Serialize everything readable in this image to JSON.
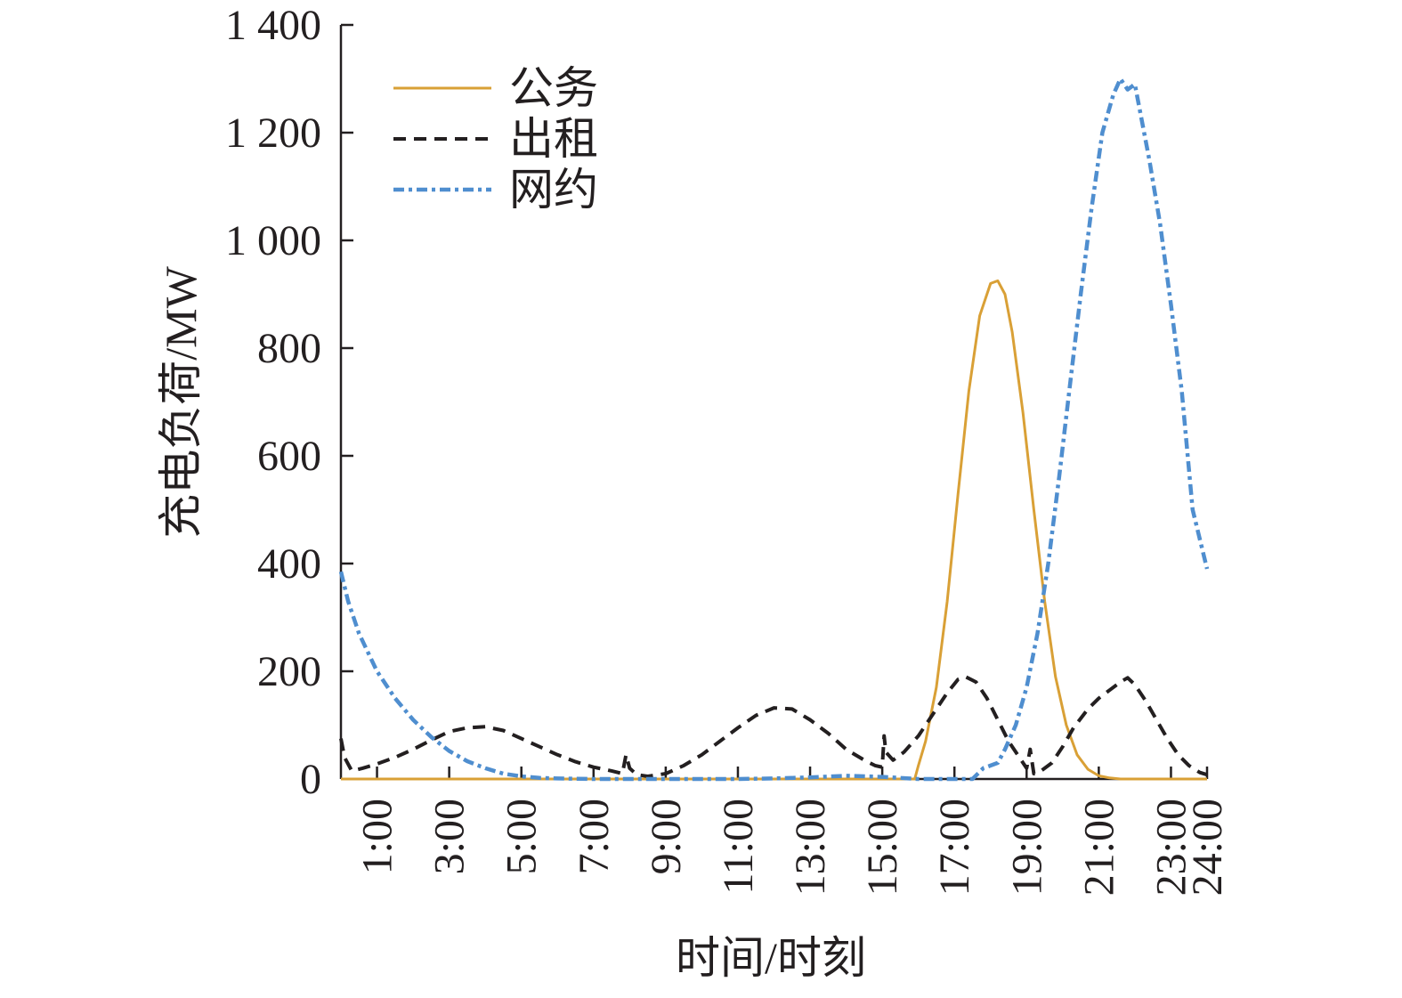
{
  "chart_data": {
    "type": "line",
    "title": "",
    "xlabel": "时间/时刻",
    "ylabel": "充电负荷/MW",
    "xlim": [
      0,
      24
    ],
    "ylim": [
      0,
      1400
    ],
    "x_ticks": [
      1,
      3,
      5,
      7,
      9,
      11,
      13,
      15,
      17,
      19,
      21,
      23,
      24
    ],
    "x_tick_labels": [
      "1:00",
      "3:00",
      "5:00",
      "7:00",
      "9:00",
      "11:00",
      "13:00",
      "15:00",
      "17:00",
      "19:00",
      "21:00",
      "23:00",
      "24:00"
    ],
    "y_ticks": [
      0,
      200,
      400,
      600,
      800,
      1000,
      1200,
      1400
    ],
    "y_tick_labels": [
      "0",
      "200",
      "400",
      "600",
      "800",
      "1 000",
      "1 200",
      "1 400"
    ],
    "grid": false,
    "legend_position": "top-left",
    "series": [
      {
        "name": "公务",
        "color": "#d9a036",
        "style": "solid",
        "x": [
          0,
          15.9,
          16.0,
          16.2,
          16.5,
          16.8,
          17.1,
          17.4,
          17.7,
          18.0,
          18.2,
          18.4,
          18.6,
          18.9,
          19.2,
          19.5,
          19.8,
          20.1,
          20.4,
          20.7,
          21.0,
          21.3,
          21.6,
          22.0,
          24.0
        ],
        "y": [
          0,
          0,
          25,
          70,
          170,
          330,
          530,
          720,
          860,
          920,
          925,
          900,
          830,
          680,
          500,
          330,
          190,
          100,
          45,
          18,
          6,
          2,
          0,
          0,
          0
        ]
      },
      {
        "name": "出租",
        "color": "#231f20",
        "style": "dashed",
        "x": [
          0,
          0.1,
          0.3,
          0.6,
          1.0,
          1.5,
          2.0,
          2.5,
          3.0,
          3.5,
          4.0,
          4.5,
          5.0,
          5.5,
          6.0,
          6.5,
          7.0,
          7.5,
          7.8,
          7.9,
          8.0,
          8.2,
          8.5,
          9.0,
          9.5,
          10.0,
          10.5,
          11.0,
          11.5,
          12.0,
          12.5,
          13.0,
          13.5,
          14.0,
          14.5,
          14.8,
          15.0,
          15.05,
          15.1,
          15.3,
          15.6,
          16.0,
          16.4,
          16.8,
          17.1,
          17.3,
          17.6,
          17.9,
          18.2,
          18.5,
          18.8,
          19.0,
          19.1,
          19.2,
          19.4,
          19.7,
          20.0,
          20.3,
          20.7,
          21.0,
          21.3,
          21.6,
          21.8,
          22.0,
          22.3,
          22.6,
          22.9,
          23.2,
          23.5,
          23.8,
          24.0
        ],
        "y": [
          75,
          40,
          15,
          20,
          28,
          40,
          55,
          72,
          88,
          95,
          97,
          90,
          75,
          60,
          45,
          32,
          22,
          15,
          10,
          45,
          20,
          8,
          5,
          10,
          25,
          45,
          70,
          95,
          118,
          132,
          130,
          110,
          85,
          55,
          35,
          25,
          22,
          80,
          50,
          35,
          50,
          80,
          120,
          160,
          185,
          190,
          180,
          150,
          110,
          70,
          40,
          20,
          55,
          10,
          15,
          30,
          60,
          95,
          130,
          150,
          165,
          180,
          188,
          175,
          145,
          110,
          75,
          45,
          25,
          12,
          8
        ]
      },
      {
        "name": "网约",
        "color": "#4f8ecf",
        "style": "dashdot",
        "x": [
          0,
          0.2,
          0.5,
          1.0,
          1.5,
          2.0,
          2.5,
          3.0,
          3.5,
          4.0,
          4.5,
          5.0,
          5.5,
          6.0,
          7.0,
          8.0,
          9.0,
          10.0,
          11.0,
          12.0,
          13.0,
          14.0,
          15.0,
          16.0,
          17.0,
          17.5,
          17.8,
          18.0,
          18.2,
          18.4,
          18.7,
          19.0,
          19.3,
          19.6,
          19.9,
          20.2,
          20.5,
          20.8,
          21.1,
          21.4,
          21.6,
          21.8,
          22.0,
          22.2,
          22.4,
          22.7,
          23.0,
          23.3,
          23.6,
          24.0
        ],
        "y": [
          385,
          330,
          270,
          200,
          150,
          110,
          78,
          52,
          33,
          20,
          10,
          5,
          2,
          1,
          0,
          0,
          0,
          0,
          0,
          1,
          3,
          6,
          4,
          0,
          0,
          0,
          20,
          25,
          30,
          55,
          100,
          170,
          270,
          400,
          560,
          730,
          900,
          1060,
          1200,
          1270,
          1300,
          1280,
          1290,
          1220,
          1150,
          1030,
          880,
          720,
          500,
          390
        ]
      }
    ]
  }
}
